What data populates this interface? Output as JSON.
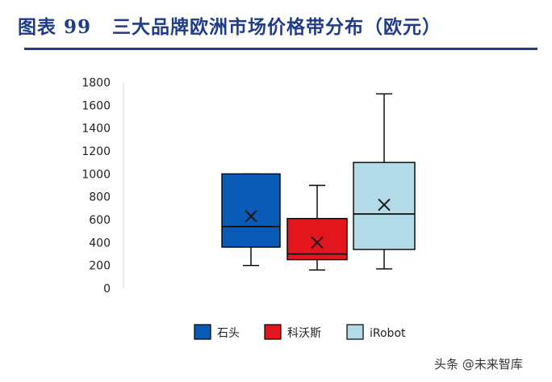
{
  "header": {
    "figure_label": "图表 99",
    "title": "三大品牌欧洲市场价格带分布（欧元）"
  },
  "watermark": "头条 @未来智库",
  "chart_data": {
    "type": "box",
    "title": "三大品牌欧洲市场价格带分布（欧元）",
    "xlabel": "",
    "ylabel": "",
    "ylim": [
      0,
      1800
    ],
    "yticks": [
      0,
      200,
      400,
      600,
      800,
      1000,
      1200,
      1400,
      1600,
      1800
    ],
    "grid": false,
    "legend_position": "bottom",
    "series": [
      {
        "name": "石头",
        "color": "#0a5bb5",
        "min": 200,
        "q1": 360,
        "median": 540,
        "q3": 1000,
        "max": 1000,
        "mean": 630
      },
      {
        "name": "科沃斯",
        "color": "#e3161d",
        "min": 160,
        "q1": 250,
        "median": 300,
        "q3": 610,
        "max": 900,
        "mean": 400
      },
      {
        "name": "iRobot",
        "color": "#b3dbe7",
        "min": 170,
        "q1": 340,
        "median": 650,
        "q3": 1100,
        "max": 1700,
        "mean": 730
      }
    ]
  }
}
